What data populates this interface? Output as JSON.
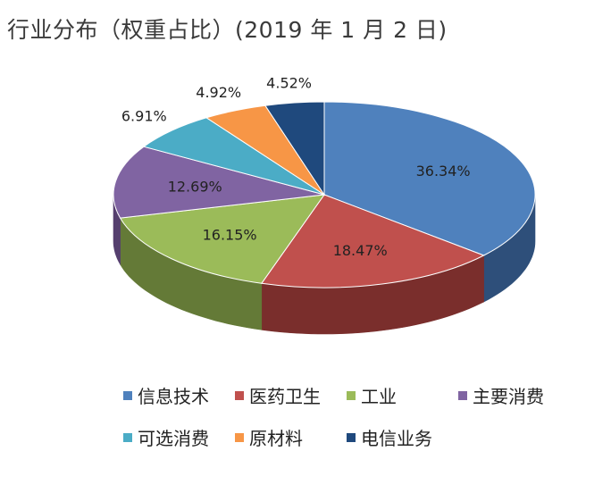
{
  "title": "行业分布（权重占比）(2019 年 1 月 2 日)",
  "chart_data": {
    "type": "pie",
    "title": "行业分布（权重占比）(2019 年 1 月 2 日)",
    "style": "3d",
    "legend_position": "bottom",
    "slices": [
      {
        "label": "信息技术",
        "value": 36.34,
        "display": "36.34%",
        "color": "#4F81BD",
        "side_color": "#2E4F7A"
      },
      {
        "label": "医药卫生",
        "value": 18.47,
        "display": "18.47%",
        "color": "#C0504D",
        "side_color": "#7A2E2C"
      },
      {
        "label": "工业",
        "value": 16.15,
        "display": "16.15%",
        "color": "#9BBB59",
        "side_color": "#647A37"
      },
      {
        "label": "主要消费",
        "value": 12.69,
        "display": "12.69%",
        "color": "#8064A2",
        "side_color": "#553F6E"
      },
      {
        "label": "可选消费",
        "value": 6.91,
        "display": "6.91%",
        "color": "#4BACC6",
        "side_color": "#2D7385"
      },
      {
        "label": "原材料",
        "value": 4.92,
        "display": "4.92%",
        "color": "#F79646",
        "side_color": "#B8621F"
      },
      {
        "label": "电信业务",
        "value": 4.52,
        "display": "4.52%",
        "color": "#1F497D",
        "side_color": "#14304F"
      }
    ]
  }
}
